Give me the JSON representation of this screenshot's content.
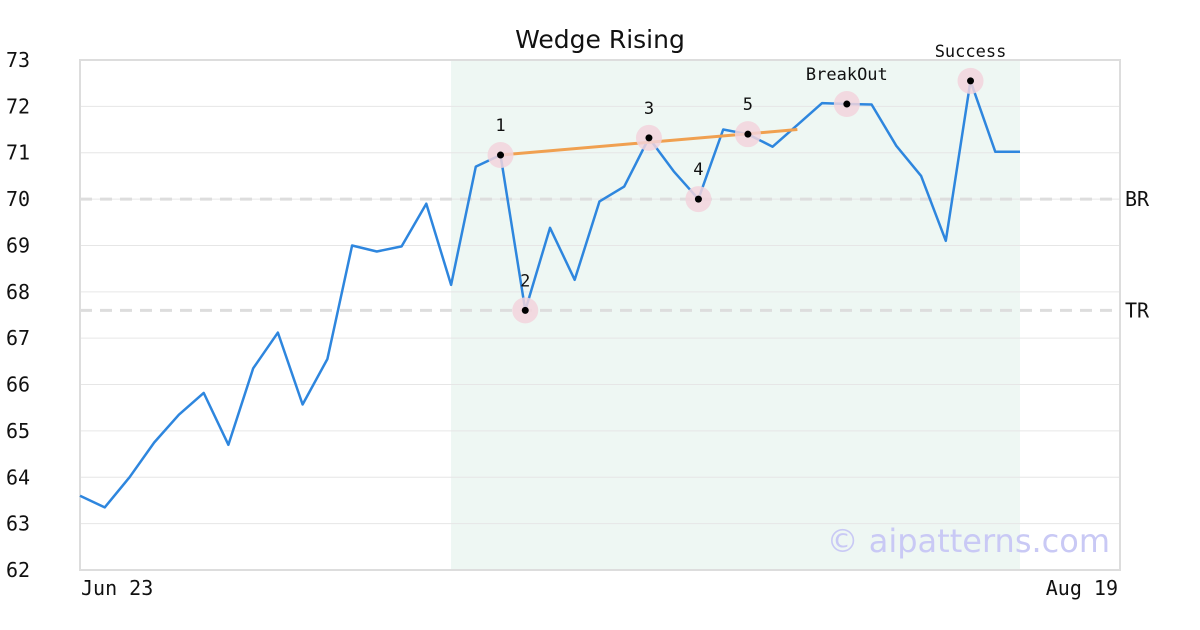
{
  "chart_data": {
    "type": "line",
    "title": "Wedge Rising",
    "ylim": [
      62,
      73
    ],
    "y_ticks": [
      "62",
      "63",
      "64",
      "65",
      "66",
      "67",
      "68",
      "69",
      "70",
      "71",
      "72",
      "73"
    ],
    "x_tick_labels": {
      "start": "Jun 23",
      "end": "Aug 19"
    },
    "grid": true,
    "watermark": "© aipatterns.com",
    "series": [
      {
        "color": "#2e86de",
        "values": [
          63.6,
          63.35,
          64.0,
          64.75,
          65.35,
          65.82,
          64.7,
          66.35,
          67.12,
          65.57,
          66.55,
          69.0,
          68.87,
          68.98,
          69.9,
          68.15,
          70.7,
          70.95,
          67.6,
          69.38,
          68.26,
          69.95,
          70.27,
          71.32,
          70.6,
          70.0,
          71.5,
          71.4,
          71.13,
          71.6,
          72.07,
          72.05,
          72.04,
          71.15,
          70.5,
          69.1,
          72.55,
          71.02,
          71.02
        ]
      }
    ],
    "pattern_region": {
      "start_index": 15,
      "end_index": 38,
      "color": "#eef7f3"
    },
    "trendline": {
      "color": "#f0a050",
      "start": {
        "index": 17,
        "value": 70.95
      },
      "end": {
        "index": 29,
        "value": 71.5
      }
    },
    "levels": [
      {
        "label": "BR",
        "value": 70.0
      },
      {
        "label": "TR",
        "value": 67.6
      }
    ],
    "points": [
      {
        "label": "1",
        "index": 17,
        "value": 70.95,
        "label_pos": "above"
      },
      {
        "label": "2",
        "index": 18,
        "value": 67.6,
        "label_pos": "above"
      },
      {
        "label": "3",
        "index": 23,
        "value": 71.32,
        "label_pos": "above"
      },
      {
        "label": "4",
        "index": 25,
        "value": 70.0,
        "label_pos": "above"
      },
      {
        "label": "5",
        "index": 27,
        "value": 71.4,
        "label_pos": "above"
      },
      {
        "label": "BreakOut",
        "index": 31,
        "value": 72.05,
        "label_pos": "above"
      },
      {
        "label": "Success",
        "index": 36,
        "value": 72.55,
        "label_pos": "above"
      }
    ]
  }
}
